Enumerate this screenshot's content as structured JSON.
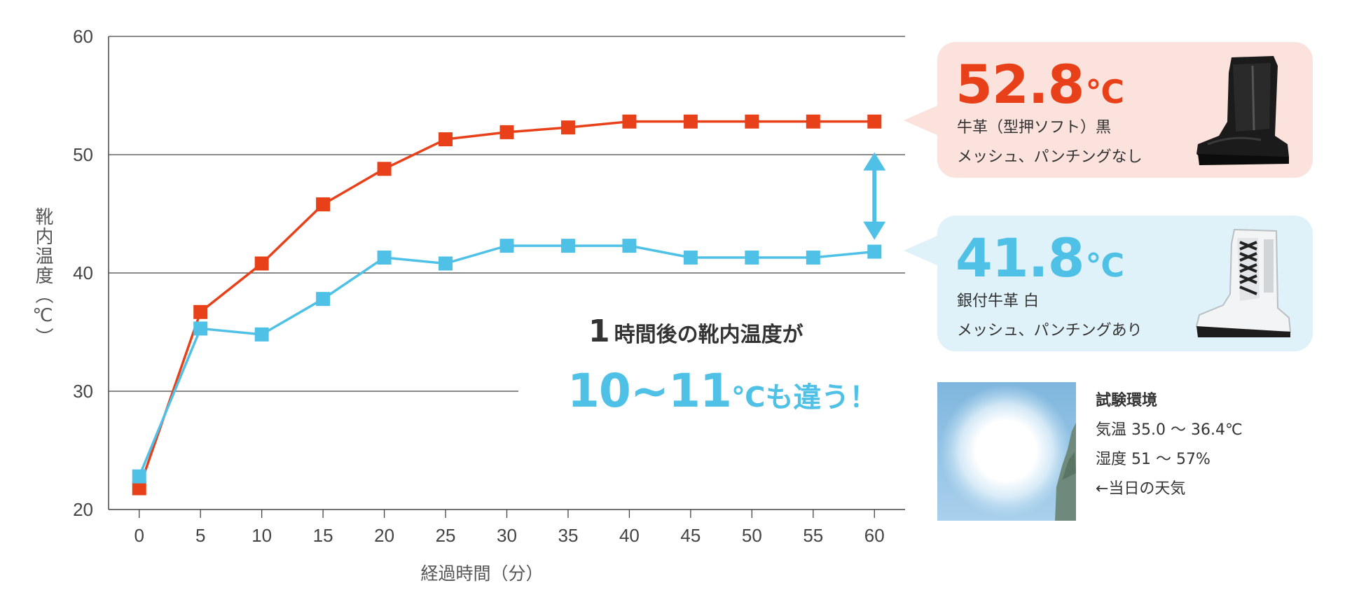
{
  "chart_data": {
    "type": "line",
    "xlabel": "経過時間（分）",
    "ylabel": "靴内温度（℃）",
    "x": [
      0,
      5,
      10,
      15,
      20,
      25,
      30,
      35,
      40,
      45,
      50,
      55,
      60
    ],
    "xlim": [
      -2.5,
      62.5
    ],
    "ylim": [
      20,
      60
    ],
    "yticks": [
      20,
      30,
      40,
      50,
      60
    ],
    "grid": "horizontal",
    "series": [
      {
        "name": "牛革（型押ソフト）黒",
        "color": "#e8411a",
        "values": [
          21.8,
          36.7,
          40.8,
          45.8,
          48.8,
          51.3,
          51.9,
          52.3,
          52.8,
          52.8,
          52.8,
          52.8,
          52.8
        ]
      },
      {
        "name": "銀付牛革 白",
        "color": "#4fc1e6",
        "values": [
          22.8,
          35.3,
          34.8,
          37.8,
          41.3,
          40.8,
          42.3,
          42.3,
          42.3,
          41.3,
          41.3,
          41.3,
          41.8
        ]
      }
    ]
  },
  "callouts": {
    "black_boot": {
      "temp": "52.8",
      "unit": "℃",
      "line1": "牛革（型押ソフト）黒",
      "line2": "メッシュ、パンチングなし",
      "color": "#e8411a",
      "bg": "#fbe2dc",
      "icon": "black-safety-boot-icon"
    },
    "white_boot": {
      "temp": "41.8",
      "unit": "℃",
      "line1": "銀付牛革 白",
      "line2": "メッシュ、パンチングあり",
      "color": "#4fc1e6",
      "bg": "#dff1f9",
      "icon": "white-safety-boot-icon"
    }
  },
  "headline": {
    "num": "1",
    "line1": "時間後の靴内温度が",
    "diff": "10~11",
    "rest": "℃も違う！"
  },
  "environment": {
    "title": "試験環境",
    "temp": "気温 35.0 ～ 36.4℃",
    "humidity": "湿度 51 ～ 57%",
    "note": "←当日の天気",
    "photo": "sun-sky-photo"
  }
}
